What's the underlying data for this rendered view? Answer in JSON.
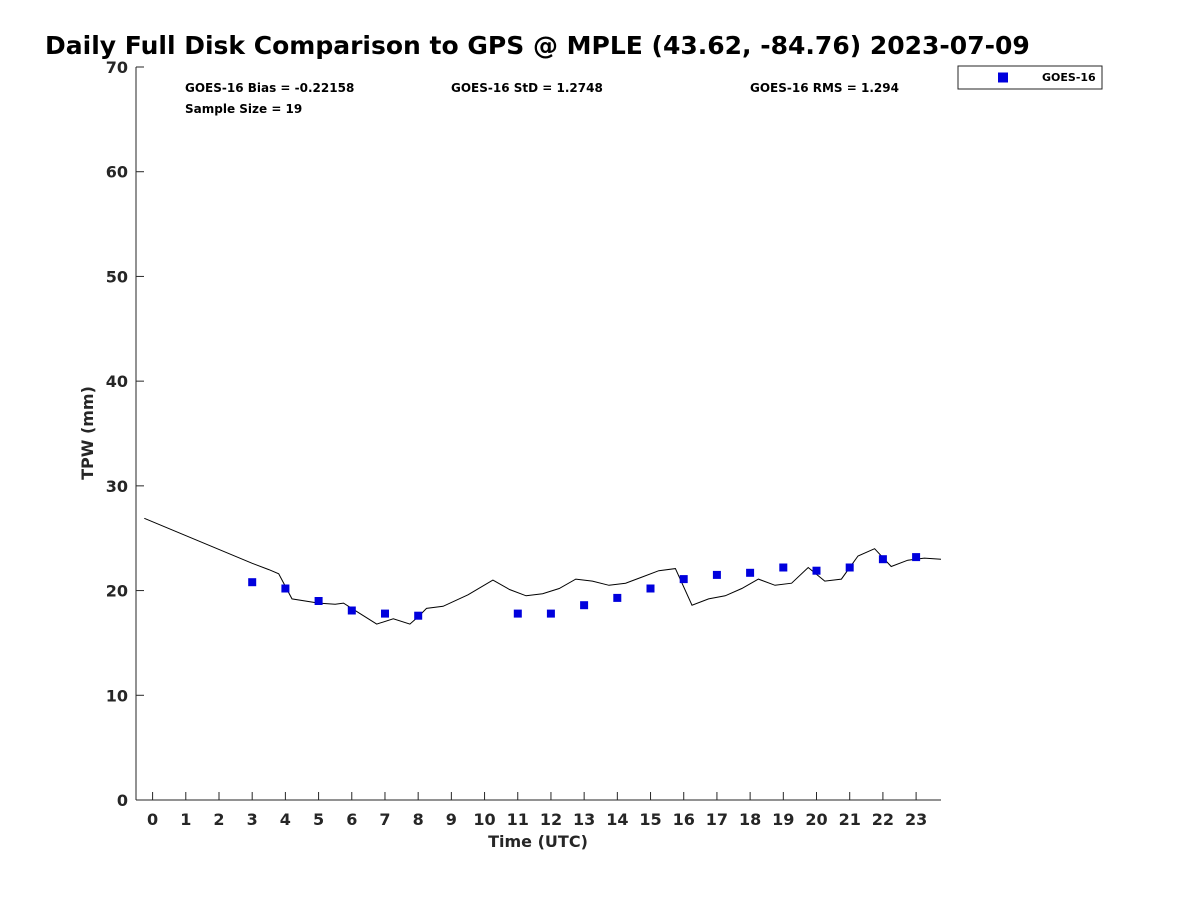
{
  "chart_data": {
    "type": "scatter",
    "title": "Daily Full Disk Comparison to GPS @ MPLE (43.62, -84.76) 2023-07-09",
    "xlabel": "Time (UTC)",
    "ylabel": "TPW (mm)",
    "xlim": [
      -0.5,
      23.75
    ],
    "ylim": [
      0,
      70
    ],
    "x_ticks": [
      0,
      1,
      2,
      3,
      4,
      5,
      6,
      7,
      8,
      9,
      10,
      11,
      12,
      13,
      14,
      15,
      16,
      17,
      18,
      19,
      20,
      21,
      22,
      23
    ],
    "x_tick_labels": [
      "0",
      "1",
      "2",
      "3",
      "4",
      "5",
      "6",
      "7",
      "8",
      "9",
      "10",
      "11",
      "12",
      "13",
      "14",
      "15",
      "16",
      "17",
      "18",
      "19",
      "20",
      "21",
      "22",
      "23"
    ],
    "y_ticks": [
      0,
      10,
      20,
      30,
      40,
      50,
      60,
      70
    ],
    "y_tick_labels": [
      "0",
      "10",
      "20",
      "30",
      "40",
      "50",
      "60",
      "70"
    ],
    "grid": false,
    "legend_position": "outside-top-right",
    "stats": {
      "bias": "GOES-16 Bias = -0.22158",
      "std": "GOES-16 StD = 1.2748",
      "rms": "GOES-16 RMS = 1.294",
      "sample_size": "Sample Size = 19"
    },
    "series": [
      {
        "name": "GOES-16",
        "kind": "scatter",
        "marker": "square",
        "color": "#0000dd",
        "x": [
          3,
          4,
          5,
          6,
          7,
          8,
          11,
          12,
          13,
          14,
          15,
          16,
          17,
          18,
          19,
          20,
          21,
          22,
          23
        ],
        "y": [
          20.8,
          20.2,
          19.0,
          18.1,
          17.8,
          17.6,
          17.8,
          17.8,
          18.6,
          19.3,
          20.2,
          21.1,
          21.5,
          21.7,
          22.2,
          21.9,
          22.2,
          23.0,
          23.2
        ]
      },
      {
        "name": "GPS",
        "kind": "line",
        "color": "#000000",
        "x": [
          -0.25,
          3.0,
          3.5,
          3.8,
          4.2,
          5.0,
          5.5,
          5.75,
          6.2,
          6.75,
          7.25,
          7.75,
          8.0,
          8.25,
          8.75,
          9.5,
          10.25,
          10.75,
          11.25,
          11.75,
          12.25,
          12.75,
          13.25,
          13.75,
          14.25,
          14.75,
          15.25,
          15.75,
          16.25,
          16.75,
          17.25,
          17.75,
          18.25,
          18.75,
          19.25,
          19.75,
          20.25,
          20.75,
          21.25,
          21.75,
          22.25,
          22.75,
          23.25,
          23.75
        ],
        "y": [
          26.9,
          22.6,
          22.0,
          21.6,
          19.2,
          18.8,
          18.7,
          18.8,
          17.9,
          16.8,
          17.3,
          16.8,
          17.5,
          18.3,
          18.5,
          19.6,
          21.0,
          20.1,
          19.5,
          19.7,
          20.2,
          21.1,
          20.9,
          20.5,
          20.7,
          21.3,
          21.9,
          22.1,
          18.6,
          19.2,
          19.5,
          20.2,
          21.1,
          20.5,
          20.7,
          22.2,
          20.9,
          21.1,
          23.3,
          24.0,
          22.3,
          22.9,
          23.1,
          23.0
        ]
      }
    ],
    "legend": [
      {
        "label": "GOES-16",
        "color": "#0000dd",
        "marker": "square"
      }
    ]
  }
}
